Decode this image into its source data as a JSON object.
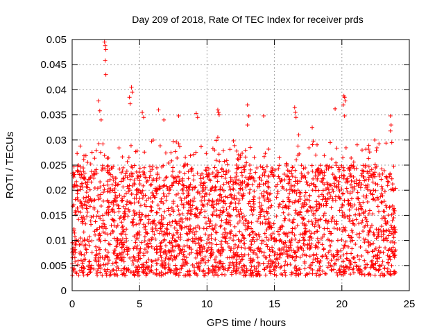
{
  "chart_data": {
    "type": "scatter",
    "title": "Day 209 of 2018, Rate Of TEC Index for receiver prds",
    "xlabel": "GPS time / hours",
    "ylabel": "ROTI / TECUs",
    "xlim": [
      0,
      25
    ],
    "ylim": [
      0,
      0.05
    ],
    "x_ticks": [
      "0",
      "5",
      "10",
      "15",
      "20",
      "25"
    ],
    "y_ticks": [
      "0",
      "0.005",
      "0.01",
      "0.015",
      "0.02",
      "0.025",
      "0.03",
      "0.035",
      "0.04",
      "0.045",
      "0.05"
    ],
    "grid": true,
    "marker": "+",
    "color": "#ff0000",
    "data_x_range": [
      0,
      24
    ],
    "bulk_band": {
      "lower": 0.003,
      "upper": 0.025
    },
    "outliers": [
      {
        "x": 2.4,
        "y": 0.0495
      },
      {
        "x": 2.45,
        "y": 0.0488
      },
      {
        "x": 2.5,
        "y": 0.048
      },
      {
        "x": 2.45,
        "y": 0.0458
      },
      {
        "x": 2.5,
        "y": 0.043
      },
      {
        "x": 1.95,
        "y": 0.0378
      },
      {
        "x": 2.05,
        "y": 0.0358
      },
      {
        "x": 2.15,
        "y": 0.034
      },
      {
        "x": 4.4,
        "y": 0.0405
      },
      {
        "x": 4.45,
        "y": 0.0395
      },
      {
        "x": 4.3,
        "y": 0.0372
      },
      {
        "x": 4.25,
        "y": 0.0385
      },
      {
        "x": 5.2,
        "y": 0.0355
      },
      {
        "x": 5.3,
        "y": 0.0345
      },
      {
        "x": 6.4,
        "y": 0.036
      },
      {
        "x": 6.8,
        "y": 0.034
      },
      {
        "x": 7.9,
        "y": 0.0348
      },
      {
        "x": 9.2,
        "y": 0.0353
      },
      {
        "x": 9.3,
        "y": 0.0345
      },
      {
        "x": 10.8,
        "y": 0.036
      },
      {
        "x": 10.85,
        "y": 0.0355
      },
      {
        "x": 10.9,
        "y": 0.035
      },
      {
        "x": 10.8,
        "y": 0.0305
      },
      {
        "x": 13.0,
        "y": 0.037
      },
      {
        "x": 13.1,
        "y": 0.0348
      },
      {
        "x": 13.0,
        "y": 0.033
      },
      {
        "x": 14.2,
        "y": 0.0348
      },
      {
        "x": 16.5,
        "y": 0.0365
      },
      {
        "x": 16.55,
        "y": 0.0355
      },
      {
        "x": 16.6,
        "y": 0.0345
      },
      {
        "x": 17.8,
        "y": 0.0325
      },
      {
        "x": 19.5,
        "y": 0.0362
      },
      {
        "x": 20.15,
        "y": 0.0388
      },
      {
        "x": 20.2,
        "y": 0.0385
      },
      {
        "x": 20.25,
        "y": 0.0378
      },
      {
        "x": 20.1,
        "y": 0.037
      },
      {
        "x": 20.2,
        "y": 0.0348
      },
      {
        "x": 23.6,
        "y": 0.0348
      },
      {
        "x": 23.65,
        "y": 0.033
      },
      {
        "x": 23.6,
        "y": 0.0318
      },
      {
        "x": 23.7,
        "y": 0.0295
      },
      {
        "x": 12.2,
        "y": 0.0278
      },
      {
        "x": 16.8,
        "y": 0.031
      },
      {
        "x": 21.5,
        "y": 0.028
      }
    ]
  }
}
